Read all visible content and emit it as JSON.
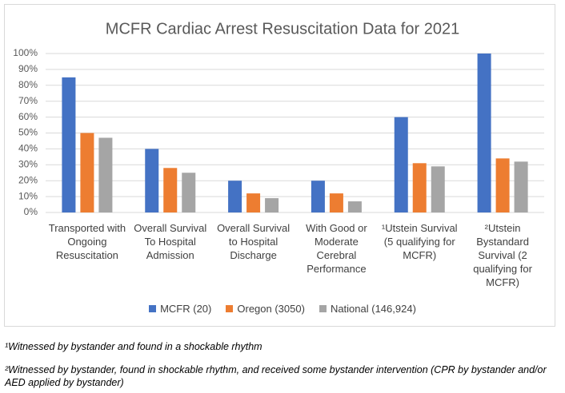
{
  "chart_data": {
    "type": "bar",
    "title": "MCFR Cardiac Arrest Resuscitation Data  for 2021",
    "categories": [
      "Transported with Ongoing Resuscitation",
      "Overall Survival To Hospital Admission",
      "Overall Survival to Hospital Discharge",
      "With Good or Moderate Cerebral Performance",
      "¹Utstein Survival (5 qualifying for MCFR)",
      "²Utstein Bystandard Survival (2 qualifying for MCFR)"
    ],
    "series": [
      {
        "name": "MCFR (20)",
        "color": "#4472c4",
        "values": [
          85,
          40,
          20,
          20,
          60,
          100
        ]
      },
      {
        "name": "Oregon (3050)",
        "color": "#ed7d31",
        "values": [
          50,
          28,
          12,
          12,
          31,
          34
        ]
      },
      {
        "name": "National (146,924)",
        "color": "#a5a5a5",
        "values": [
          47,
          25,
          9,
          7,
          29,
          32
        ]
      }
    ],
    "ylim": [
      0,
      100
    ],
    "yticks": [
      {
        "value": 0,
        "label": "0%"
      },
      {
        "value": 10,
        "label": "10%"
      },
      {
        "value": 20,
        "label": "20%"
      },
      {
        "value": 30,
        "label": "30%"
      },
      {
        "value": 40,
        "label": "40%"
      },
      {
        "value": 50,
        "label": "50%"
      },
      {
        "value": 60,
        "label": "60%"
      },
      {
        "value": 70,
        "label": "70%"
      },
      {
        "value": 80,
        "label": "80%"
      },
      {
        "value": 90,
        "label": "90%"
      },
      {
        "value": 100,
        "label": "100%"
      }
    ],
    "grid": true,
    "legend": "bottom"
  },
  "footnotes": [
    "¹Witnessed by bystander and found in a shockable rhythm",
    "²Witnessed by bystander, found in shockable rhythm, and received some bystander intervention (CPR by bystander and/or AED applied by bystander)"
  ]
}
